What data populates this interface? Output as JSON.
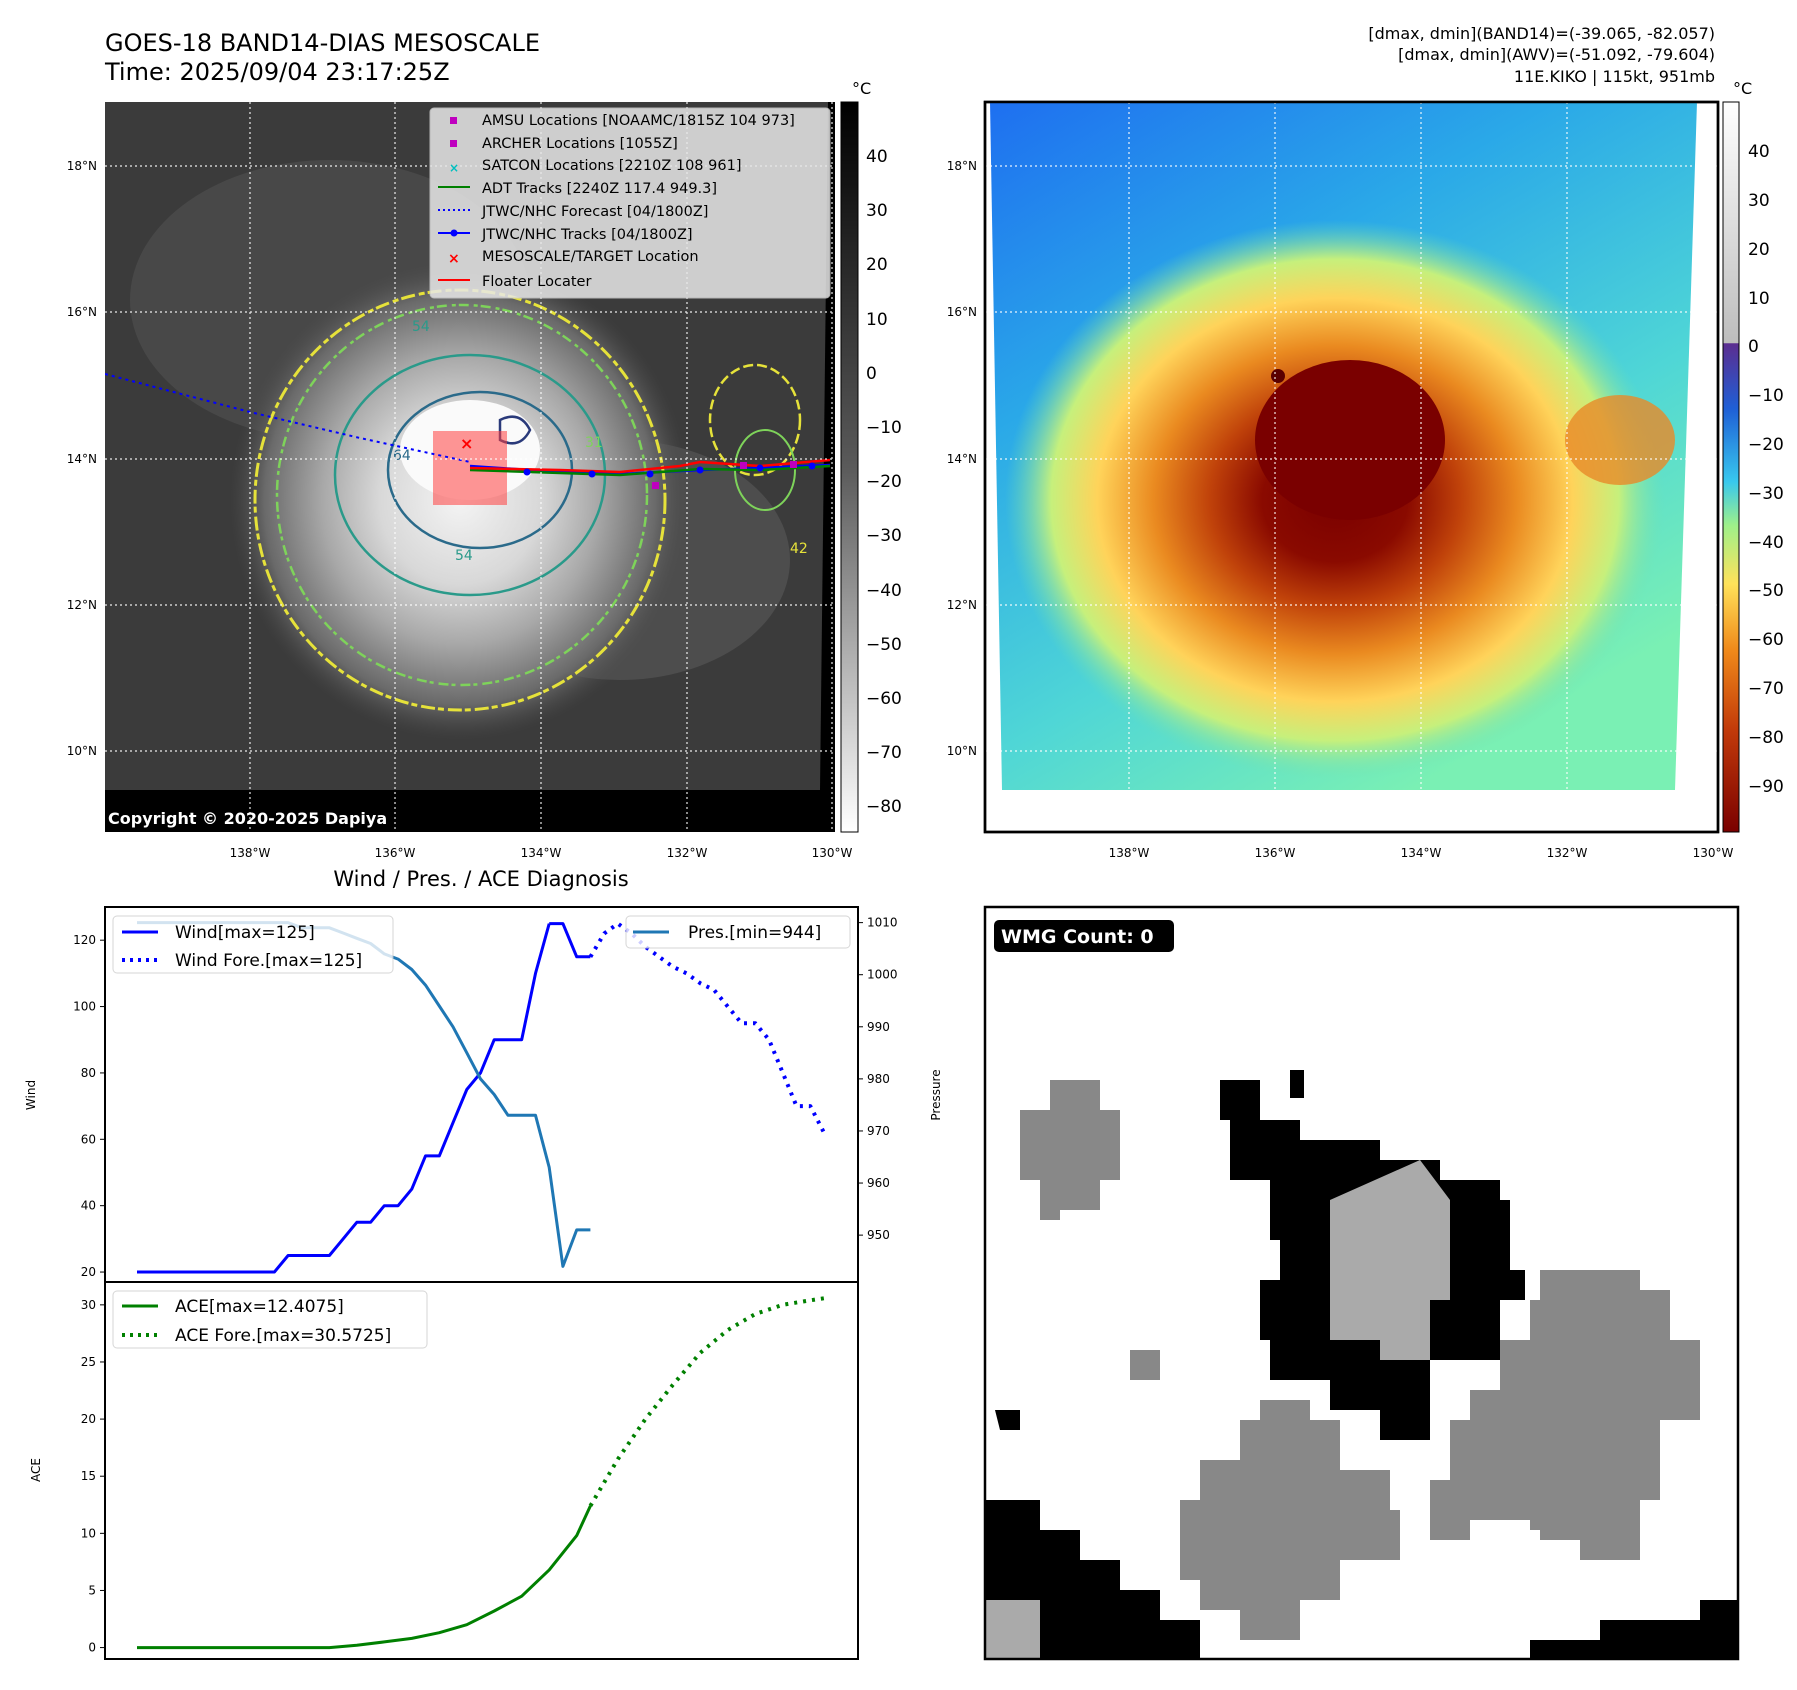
{
  "header": {
    "title_line1": "GOES-18 BAND14-DIAS MESOSCALE",
    "title_line2": "Time: 2025/09/04 23:17:25Z",
    "dmax_band14": "[dmax, dmin](BAND14)=(-39.065, -82.057)",
    "dmax_awv": "[dmax, dmin](AWV)=(-51.092, -79.604)",
    "storm_info": "11E.KIKO | 115kt, 951mb"
  },
  "map_left": {
    "lon_ticks": [
      "138°W",
      "136°W",
      "134°W",
      "132°W",
      "130°W"
    ],
    "lat_ticks": [
      "18°N",
      "16°N",
      "14°N",
      "12°N",
      "10°N"
    ],
    "copyright": "Copyright © 2020-2025 Dapiya",
    "colorbar_unit": "°C",
    "colorbar_ticks": [
      "40",
      "30",
      "20",
      "10",
      "0",
      "−10",
      "−20",
      "−30",
      "−40",
      "−50",
      "−60",
      "−70",
      "−80"
    ],
    "legend": [
      {
        "label": "AMSU Locations [NOAAMC/1815Z 104 973]",
        "marker": "square",
        "color": "#bf00bf"
      },
      {
        "label": "ARCHER Locations [1055Z]",
        "marker": "square",
        "color": "#bf00bf"
      },
      {
        "label": "SATCON Locations [2210Z 108 961]",
        "marker": "x",
        "color": "#00bfbf"
      },
      {
        "label": "ADT Tracks [2240Z 117.4 949.3]",
        "marker": "line",
        "color": "#008000"
      },
      {
        "label": "JTWC/NHC Forecast [04/1800Z]",
        "marker": "dotted",
        "color": "#0000ff"
      },
      {
        "label": "JTWC/NHC Tracks [04/1800Z]",
        "marker": "line-dot",
        "color": "#0000ff"
      },
      {
        "label": "MESOSCALE/TARGET Location",
        "marker": "x",
        "color": "#ff0000"
      },
      {
        "label": "Floater Locater",
        "marker": "line",
        "color": "#ff0000"
      }
    ],
    "contour_labels": [
      "54",
      "64",
      "31",
      "54",
      "42"
    ]
  },
  "map_right": {
    "lon_ticks": [
      "138°W",
      "136°W",
      "134°W",
      "132°W",
      "130°W"
    ],
    "lat_ticks": [
      "18°N",
      "16°N",
      "14°N",
      "12°N",
      "10°N"
    ],
    "colorbar_unit": "°C",
    "colorbar_ticks": [
      "40",
      "30",
      "20",
      "10",
      "0",
      "−10",
      "−20",
      "−30",
      "−40",
      "−50",
      "−60",
      "−70",
      "−80",
      "−90"
    ]
  },
  "chart_data": [
    {
      "type": "line",
      "title": "Wind / Pres. / ACE Diagnosis",
      "ylabel": "Wind",
      "ylabel_right": "Pressure",
      "ylim": [
        17,
        130
      ],
      "ylim_right": [
        941,
        1013
      ],
      "yticks": [
        20,
        40,
        60,
        80,
        100,
        120
      ],
      "yticks_right": [
        950,
        960,
        970,
        980,
        990,
        1000,
        1010
      ],
      "x": [
        0,
        1,
        2,
        3,
        4,
        5,
        6,
        7,
        8,
        9,
        10,
        11,
        12,
        13,
        14,
        15,
        16,
        17,
        18,
        19,
        20,
        21,
        22,
        23,
        24,
        25,
        26,
        27,
        28,
        29,
        30,
        31,
        32,
        33,
        34,
        35,
        36,
        37,
        38,
        39,
        40,
        41,
        42,
        43,
        44,
        45,
        46,
        47,
        48,
        49,
        50
      ],
      "series": [
        {
          "name": "Wind[max=125]",
          "style": "solid",
          "color": "#0000ff",
          "axis": "left",
          "x": [
            0,
            1,
            2,
            3,
            4,
            5,
            6,
            7,
            8,
            9,
            10,
            11,
            12,
            13,
            14,
            15,
            16,
            17,
            18,
            19,
            20,
            21,
            22,
            23,
            24,
            25,
            26,
            27,
            28,
            29,
            30
          ],
          "values": [
            20,
            20,
            20,
            20,
            20,
            20,
            20,
            20,
            20,
            20,
            20,
            25,
            25,
            25,
            25,
            30,
            35,
            35,
            40,
            40,
            45,
            55,
            55,
            65,
            75,
            80,
            90,
            90,
            90,
            110,
            125
          ]
        },
        {
          "name": "_wind_tail",
          "style": "solid",
          "color": "#0000ff",
          "axis": "left",
          "x": [
            30,
            31,
            32,
            33
          ],
          "values": [
            125,
            125,
            115,
            115
          ]
        },
        {
          "name": "Wind Fore.[max=125]",
          "style": "dotted",
          "color": "#0000ff",
          "axis": "left",
          "x": [
            33,
            34,
            35,
            36,
            37,
            38,
            39,
            40,
            41,
            42,
            43,
            44,
            45,
            46,
            47,
            48,
            49,
            50
          ],
          "values": [
            115,
            122,
            125,
            122,
            118,
            115,
            112,
            110,
            107,
            105,
            100,
            95,
            95,
            90,
            80,
            70,
            70,
            62
          ]
        },
        {
          "name": "Pres.[min=944]",
          "style": "solid",
          "color": "#1f77b4",
          "axis": "right",
          "x": [
            0,
            1,
            2,
            3,
            4,
            5,
            6,
            7,
            8,
            9,
            10,
            11,
            12,
            13,
            14,
            15,
            16,
            17,
            18,
            19,
            20,
            21,
            22,
            23,
            24,
            25,
            26,
            27,
            28,
            29,
            30,
            31,
            32,
            33
          ],
          "values": [
            1010,
            1010,
            1010,
            1010,
            1010,
            1010,
            1010,
            1010,
            1010,
            1010,
            1010,
            1010,
            1009,
            1009,
            1009,
            1008,
            1007,
            1006,
            1004,
            1003,
            1001,
            998,
            994,
            990,
            985,
            980,
            977,
            973,
            973,
            973,
            963,
            944,
            951,
            951
          ]
        }
      ],
      "legend": [
        {
          "label": "Wind[max=125]",
          "style": "solid",
          "color": "#0000ff"
        },
        {
          "label": "Wind Fore.[max=125]",
          "style": "dotted",
          "color": "#0000ff"
        }
      ],
      "legend_right": [
        {
          "label": "Pres.[min=944]",
          "style": "solid",
          "color": "#1f77b4"
        }
      ]
    },
    {
      "type": "line",
      "ylabel": "ACE",
      "ylim": [
        -1,
        32
      ],
      "yticks": [
        0,
        5,
        10,
        15,
        20,
        25,
        30
      ],
      "series": [
        {
          "name": "ACE[max=12.4075]",
          "style": "solid",
          "color": "#008000",
          "x": [
            0,
            2,
            4,
            6,
            8,
            10,
            12,
            14,
            16,
            18,
            20,
            22,
            24,
            26,
            28,
            30,
            32,
            33
          ],
          "values": [
            0,
            0,
            0,
            0,
            0,
            0,
            0,
            0,
            0.2,
            0.5,
            0.8,
            1.3,
            2,
            3.2,
            4.5,
            6.8,
            9.8,
            12.4
          ]
        },
        {
          "name": "ACE Fore.[max=30.5725]",
          "style": "dotted",
          "color": "#008000",
          "x": [
            33,
            35,
            37,
            39,
            41,
            43,
            45,
            47,
            49,
            50
          ],
          "values": [
            12.4,
            16.5,
            20,
            23,
            25.8,
            27.8,
            29.2,
            30,
            30.4,
            30.57
          ]
        }
      ],
      "legend": [
        {
          "label": "ACE[max=12.4075]",
          "style": "solid",
          "color": "#008000"
        },
        {
          "label": "ACE Fore.[max=30.5725]",
          "style": "dotted",
          "color": "#008000"
        }
      ]
    }
  ],
  "wmg_panel": {
    "badge": "WMG Count: 0"
  }
}
